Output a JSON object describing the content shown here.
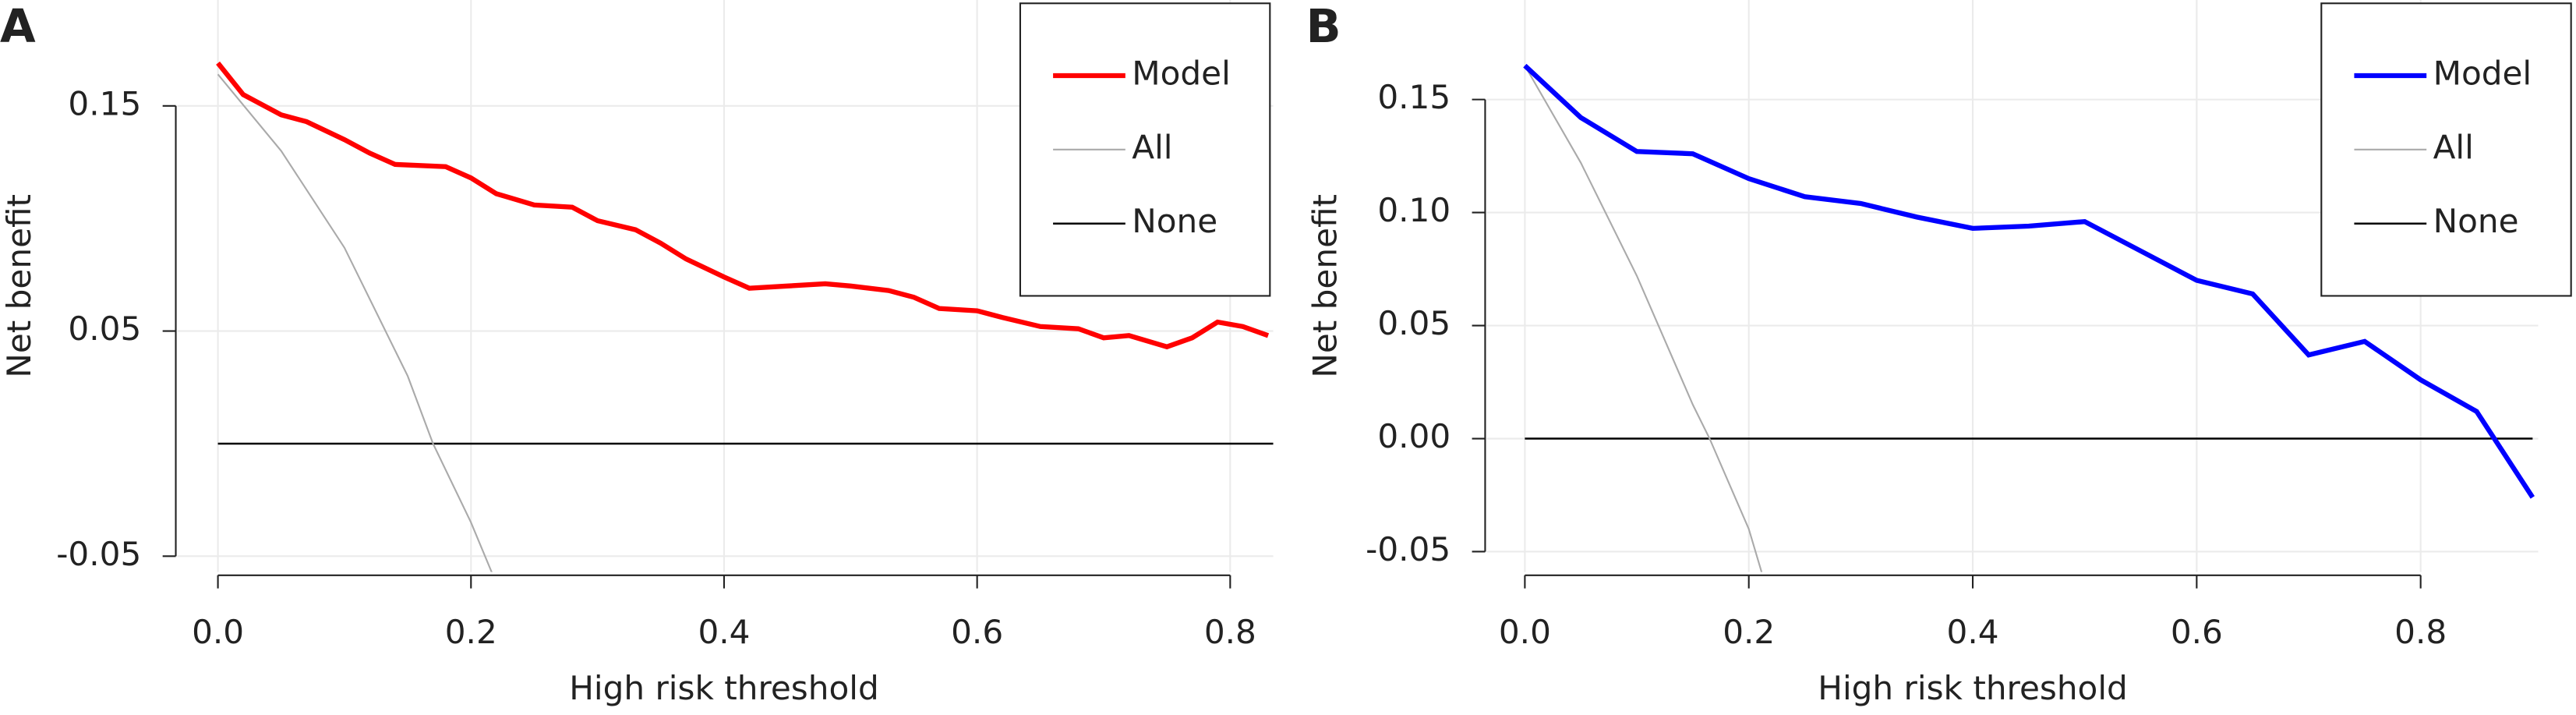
{
  "chart_data": [
    {
      "type": "line",
      "label": "A",
      "xlabel": "High risk threshold",
      "ylabel": "Net benefit",
      "xlim": [
        -0.032,
        0.834
      ],
      "ylim": [
        -0.057,
        0.197
      ],
      "xticks": [
        {
          "value": 0,
          "label": "0.0"
        },
        0.2,
        0.4,
        0.6,
        0.8
      ],
      "yticks": [
        -0.05,
        0.05,
        0.15
      ],
      "grid": true,
      "legend": "upper right",
      "series": [
        {
          "name": "Model",
          "color": "#ff0000",
          "x": [
            0,
            0.02,
            0.05,
            0.07,
            0.1,
            0.12,
            0.14,
            0.18,
            0.2,
            0.22,
            0.25,
            0.28,
            0.3,
            0.33,
            0.35,
            0.37,
            0.4,
            0.42,
            0.45,
            0.48,
            0.5,
            0.53,
            0.55,
            0.57,
            0.6,
            0.62,
            0.65,
            0.68,
            0.7,
            0.72,
            0.75,
            0.77,
            0.79,
            0.81,
            0.83
          ],
          "values": [
            0.169,
            0.155,
            0.146,
            0.143,
            0.135,
            0.129,
            0.124,
            0.123,
            0.118,
            0.111,
            0.106,
            0.105,
            0.099,
            0.095,
            0.089,
            0.082,
            0.074,
            0.069,
            0.07,
            0.071,
            0.07,
            0.068,
            0.065,
            0.06,
            0.059,
            0.056,
            0.052,
            0.051,
            0.047,
            0.048,
            0.043,
            0.047,
            0.054,
            0.052,
            0.048
          ]
        },
        {
          "name": "All",
          "color": "#aaaaaa",
          "x": [
            0,
            0.05,
            0.1,
            0.15,
            0.17,
            0.2,
            0.22
          ],
          "values": [
            0.164,
            0.13,
            0.087,
            0.03,
            0.0,
            -0.035,
            -0.062
          ]
        },
        {
          "name": "None",
          "color": "#000000",
          "x": [
            0,
            0.834
          ],
          "values": [
            0,
            0
          ]
        }
      ]
    },
    {
      "type": "line",
      "label": "B",
      "xlabel": "High risk threshold",
      "ylabel": "Net benefit",
      "xlim": [
        -0.034,
        0.905
      ],
      "ylim": [
        -0.059,
        0.194
      ],
      "xticks": [
        {
          "value": 0,
          "label": "0.0"
        },
        0.2,
        0.4,
        0.6,
        0.8
      ],
      "yticks": [
        -0.05,
        {
          "value": 0,
          "label": "0.00"
        },
        0.05,
        {
          "value": 0.1,
          "label": "0.10"
        },
        0.15
      ],
      "grid": true,
      "legend": "upper right",
      "series": [
        {
          "name": "Model",
          "color": "#0000ff",
          "x": [
            0,
            0.05,
            0.1,
            0.15,
            0.2,
            0.25,
            0.3,
            0.35,
            0.4,
            0.45,
            0.5,
            0.55,
            0.6,
            0.65,
            0.7,
            0.75,
            0.8,
            0.85,
            0.9
          ],
          "values": [
            0.165,
            0.142,
            0.127,
            0.126,
            0.115,
            0.107,
            0.104,
            0.098,
            0.093,
            0.094,
            0.096,
            0.083,
            0.07,
            0.064,
            0.037,
            0.043,
            0.026,
            0.012,
            -0.026
          ]
        },
        {
          "name": "All",
          "color": "#aaaaaa",
          "x": [
            0,
            0.05,
            0.1,
            0.15,
            0.165,
            0.2,
            0.212
          ],
          "values": [
            0.165,
            0.122,
            0.072,
            0.015,
            0,
            -0.04,
            -0.06
          ]
        },
        {
          "name": "None",
          "color": "#000000",
          "x": [
            0,
            0.9
          ],
          "values": [
            0,
            0
          ]
        }
      ]
    }
  ]
}
